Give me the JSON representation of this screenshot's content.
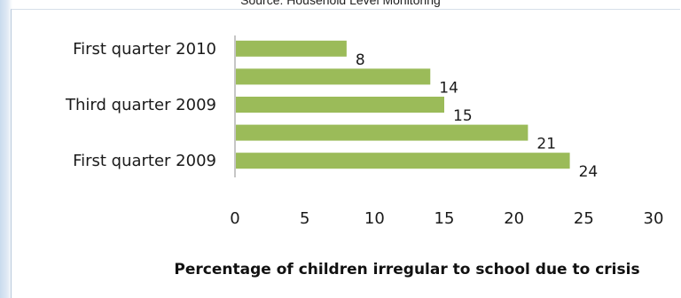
{
  "source_note": "Source: Household Level Monitoring",
  "chart_data": {
    "type": "bar",
    "orientation": "horizontal",
    "title": "",
    "xlabel": "Percentage of children irregular to school due to crisis",
    "ylabel": "",
    "xlim": [
      0,
      30
    ],
    "xticks": [
      0,
      5,
      10,
      15,
      20,
      25,
      30
    ],
    "categories": [
      "First quarter 2010",
      "",
      "Third quarter 2009",
      "",
      "First quarter 2009"
    ],
    "values": [
      8,
      14,
      15,
      21,
      24
    ],
    "bar_color": "#9bbb59",
    "grid": false,
    "legend": "none"
  }
}
